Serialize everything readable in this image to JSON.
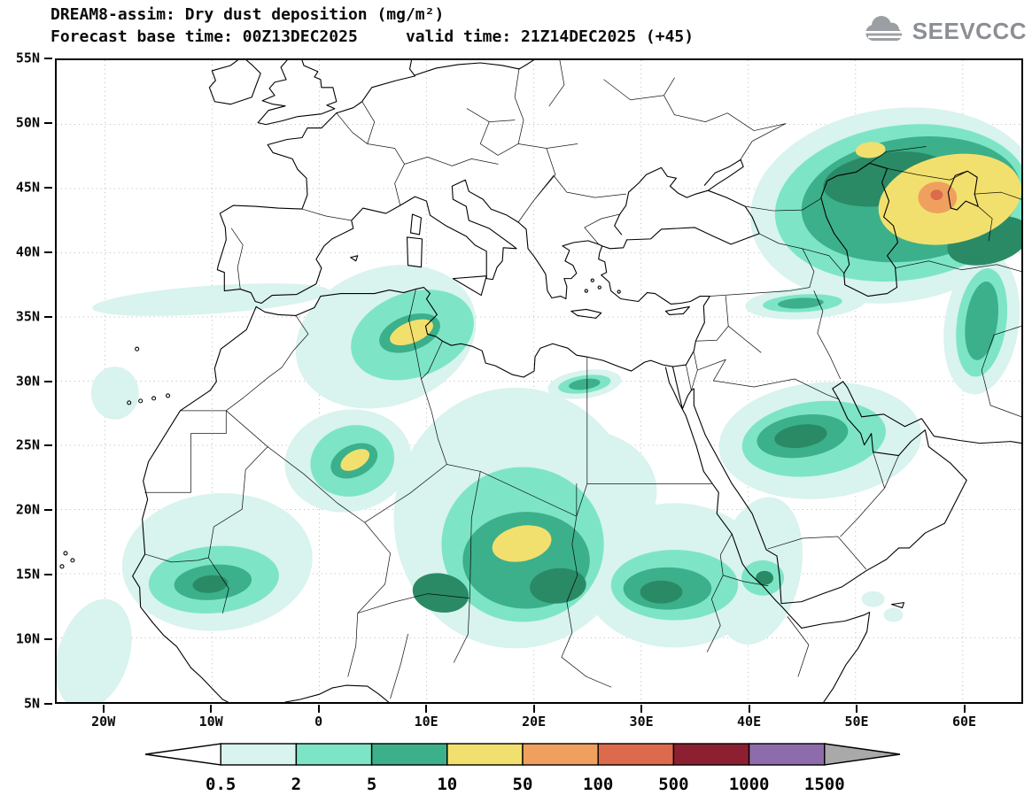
{
  "header": {
    "title_line1": "DREAM8-assim: Dry dust deposition (mg/m²)",
    "title_line2": "Forecast base time: 00Z13DEC2025     valid time: 21Z14DEC2025 (+45)",
    "logo_text": "SEEVCCC"
  },
  "map": {
    "y_axis_labels": [
      "55N",
      "50N",
      "45N",
      "40N",
      "35N",
      "30N",
      "25N",
      "20N",
      "15N",
      "10N",
      "5N"
    ],
    "x_axis_labels": [
      "20W",
      "10W",
      "0",
      "10E",
      "20E",
      "30E",
      "40E",
      "50E",
      "60E"
    ]
  },
  "colorbar": {
    "labels": [
      "0.5",
      "2",
      "5",
      "10",
      "50",
      "100",
      "500",
      "1000",
      "1500"
    ],
    "colors": [
      "#ffffff",
      "#d9f3ee",
      "#7de5c6",
      "#3cb08a",
      "#f2e06e",
      "#efa05f",
      "#dc6a4c",
      "#8c2030",
      "#8e6cab",
      "#a9a9a9"
    ]
  },
  "palette": {
    "dark_green": "#2a8a66",
    "grid_gray": "#b8b8b8",
    "coast_black": "#000000",
    "logo_gray": "#8b8f93"
  },
  "chart_data": {
    "type": "heatmap",
    "title": "DREAM8-assim: Dry dust deposition (mg/m²)",
    "units": "mg/m²",
    "forecast_base_time": "00Z13DEC2025",
    "valid_time": "21Z14DEC2025 (+45)",
    "contour_levels": [
      0.5,
      2,
      5,
      10,
      50,
      100,
      500,
      1000,
      1500
    ],
    "lon_range_deg": [
      -24.5,
      65.5
    ],
    "lat_range_deg": [
      5,
      55
    ],
    "maxima": [
      {
        "region": "Central Asia east of Caspian Sea (~55E, 45N)",
        "value_range_mg_m2": "100-500"
      },
      {
        "region": "Central Sahara, Chad/Niger (~19E, 18N)",
        "value_range_mg_m2": "10-50"
      },
      {
        "region": "NE Algeria / Tunisia border (~8E, 33N)",
        "value_range_mg_m2": "10-50"
      },
      {
        "region": "Southern Algeria (~4E, 24N)",
        "value_range_mg_m2": "10-50"
      },
      {
        "region": "Central Saudi Arabia (~45E, 25N)",
        "value_range_mg_m2": "5-10"
      },
      {
        "region": "Sudan (~28E, 13N)",
        "value_range_mg_m2": "5-10"
      },
      {
        "region": "Senegal / Western Mali (~10W, 14N)",
        "value_range_mg_m2": "5-10"
      }
    ]
  }
}
